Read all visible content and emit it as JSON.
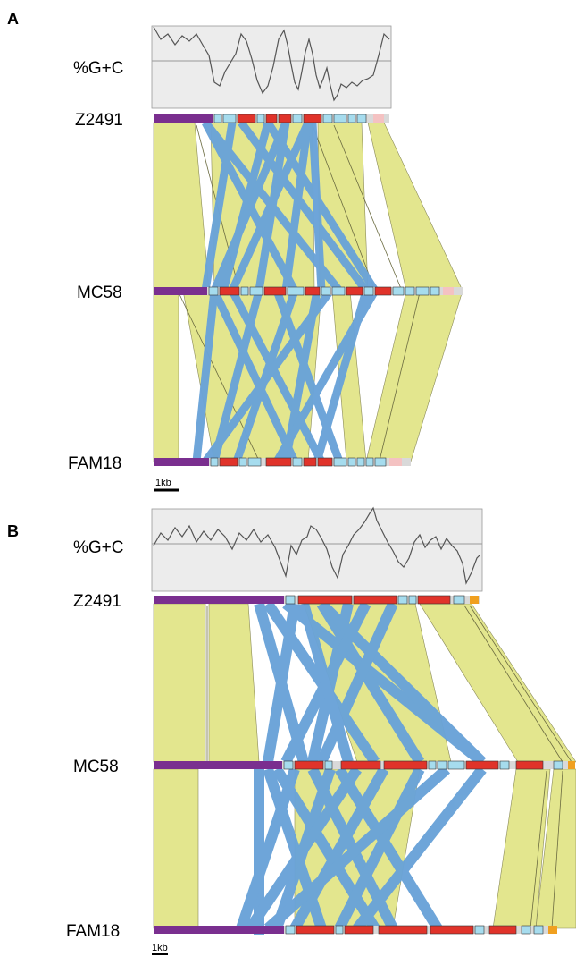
{
  "panels": [
    {
      "letter": "A",
      "gc_label": "%G+C",
      "genomes": [
        "Z2491",
        "MC58",
        "FAM18"
      ],
      "scale_label": "1kb"
    },
    {
      "letter": "B",
      "gc_label": "%G+C",
      "genomes": [
        "Z2491",
        "MC58",
        "FAM18"
      ],
      "scale_label": "1kb"
    }
  ],
  "colors": {
    "conserved_block": "#e3e68e",
    "repeat_link": "#6aa3d8",
    "segment_purple": "#7a2f8f",
    "segment_red": "#e0332a",
    "segment_cyan": "#a6dcee",
    "segment_pink": "#f4c2c2",
    "segment_orange": "#f0a020",
    "gc_plot_bg": "#ececec",
    "gc_line": "#555555"
  }
}
